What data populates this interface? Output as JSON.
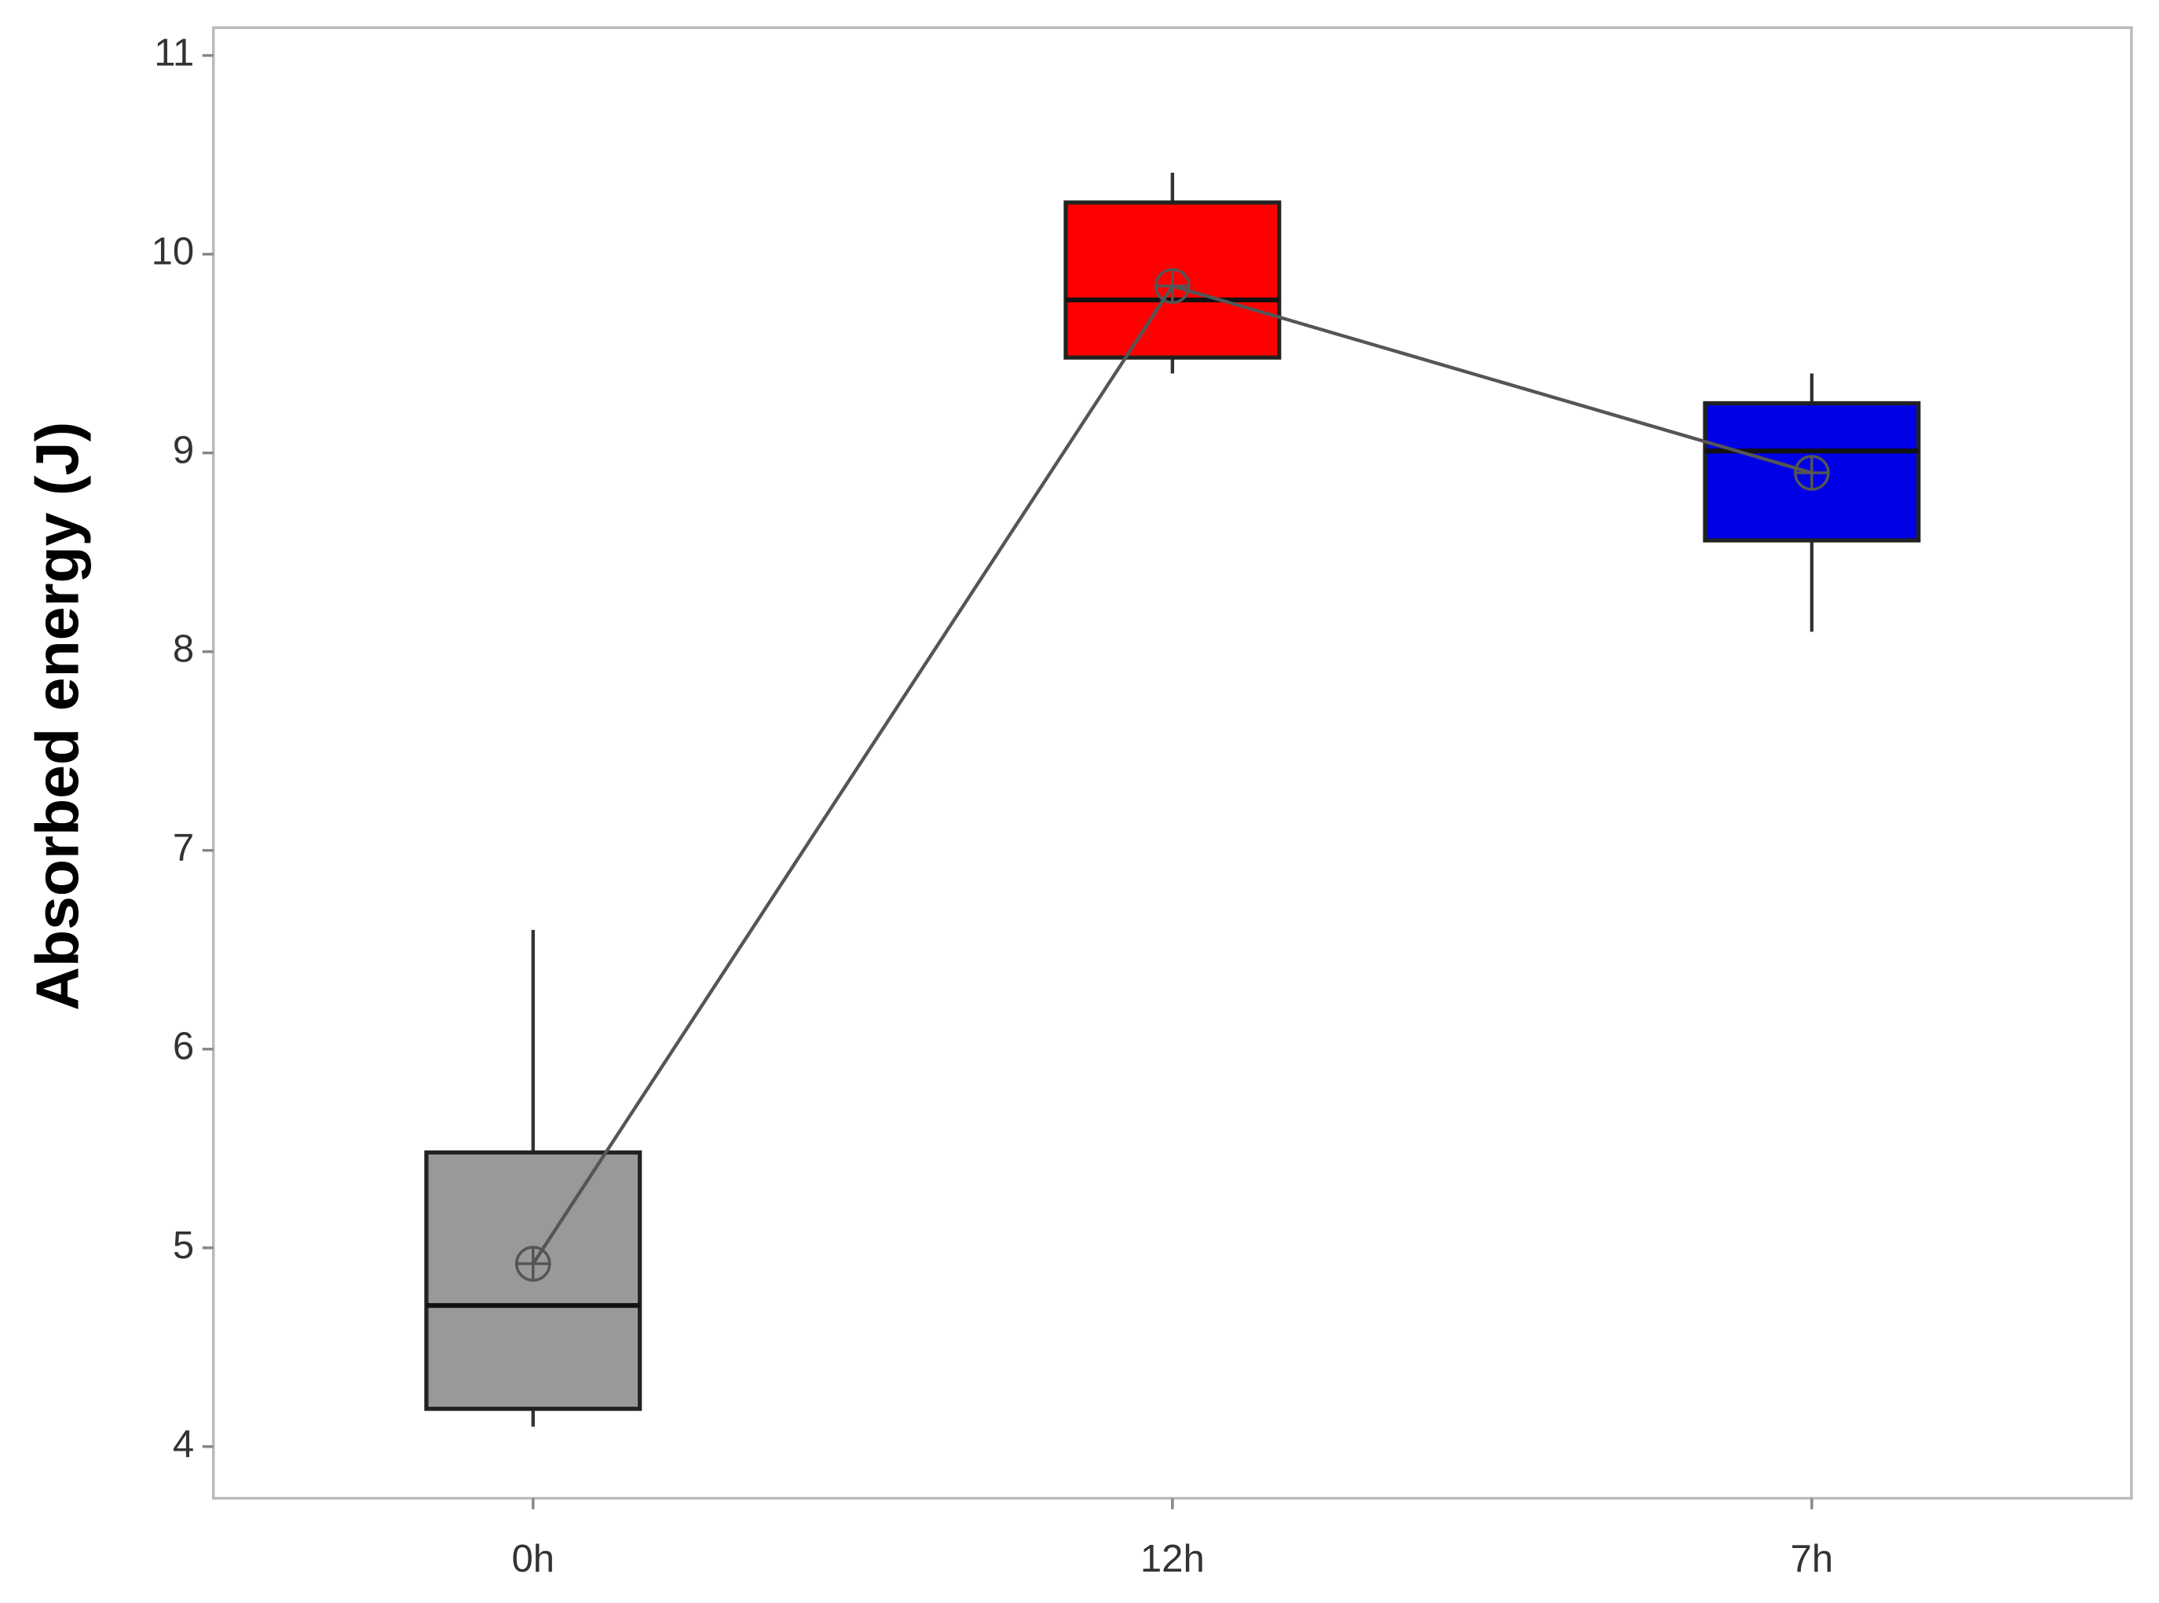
{
  "chart_data": {
    "type": "box",
    "y_label": "Absorbed energy (J)",
    "categories": [
      "0h",
      "12h",
      "7h"
    ],
    "boxes": [
      {
        "color": "#999999",
        "min": 4.1,
        "q1": 4.19,
        "median": 4.71,
        "q3": 5.48,
        "max": 6.6,
        "mean": 4.92
      },
      {
        "color": "#ff0000",
        "min": 9.4,
        "q1": 9.48,
        "median": 9.77,
        "q3": 10.26,
        "max": 10.41,
        "mean": 9.84
      },
      {
        "color": "#0000e6",
        "min": 8.1,
        "q1": 8.56,
        "median": 9.01,
        "q3": 9.25,
        "max": 9.4,
        "mean": 8.9
      }
    ],
    "ylim": [
      3.74,
      11.14
    ],
    "yticks": [
      4,
      5,
      6,
      7,
      8,
      9,
      10,
      11
    ]
  }
}
